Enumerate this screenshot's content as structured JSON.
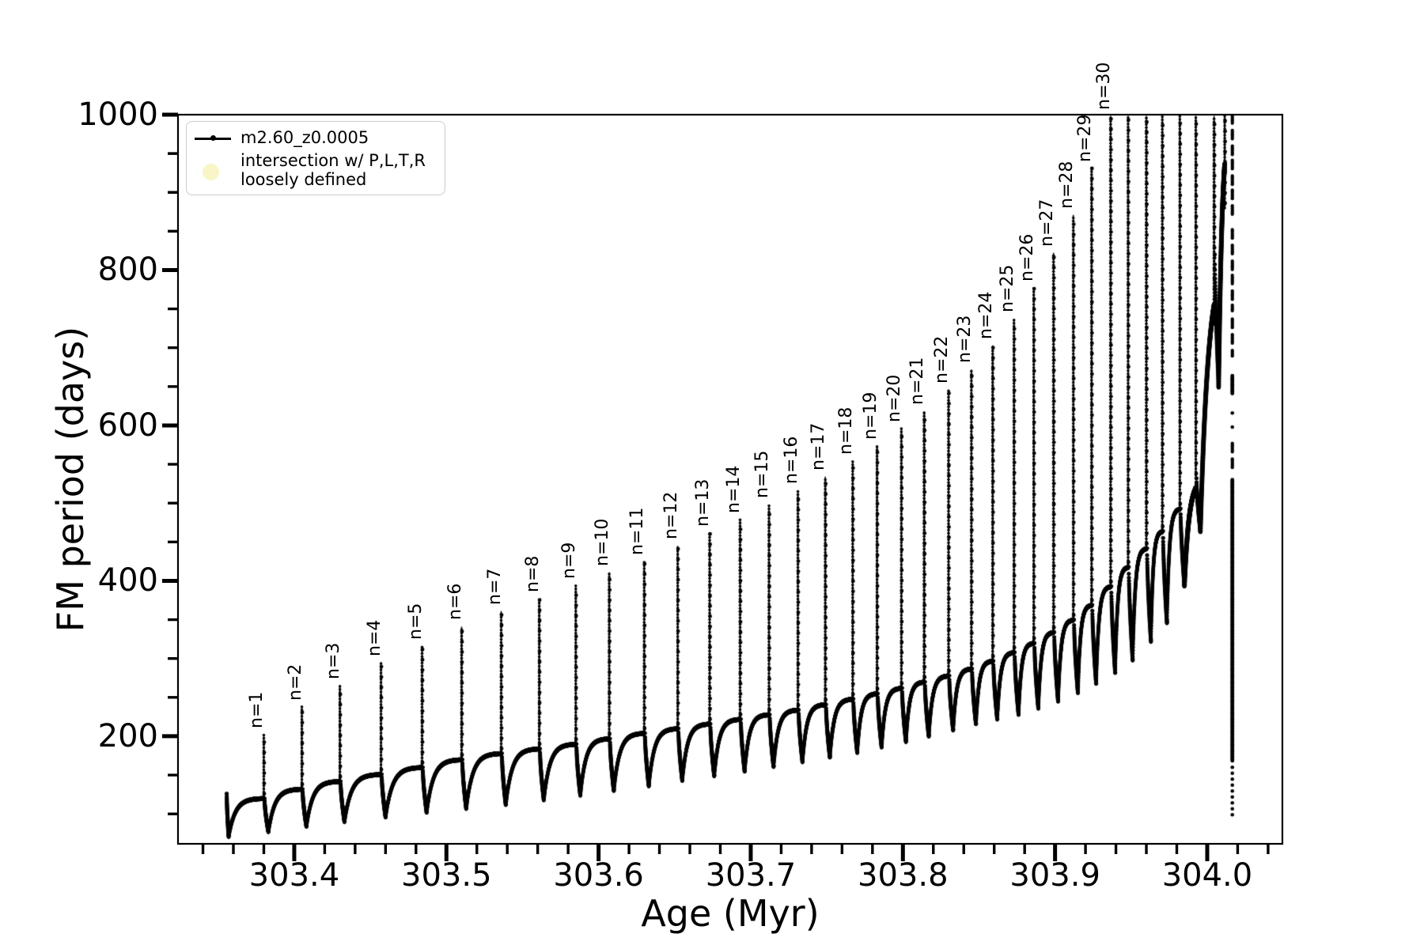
{
  "figure": {
    "xlabel": "Age (Myr)",
    "ylabel": "FM period (days)",
    "axis_color": "#000000",
    "background": "#ffffff"
  },
  "legend": {
    "series_label": "m2.60_z0.0005",
    "intersection_label_line1": "intersection w/ P,L,T,R",
    "intersection_label_line2": "loosely defined",
    "intersection_marker_color": "#f8f5c6",
    "line_marker_color": "#000000"
  },
  "chart_data": {
    "type": "line",
    "title": "",
    "xlabel": "Age (Myr)",
    "ylabel": "FM period (days)",
    "series_name": "m2.60_z0.0005",
    "grid": false,
    "legend_position": "upper left",
    "xlim": [
      303.3236,
      304.0494
    ],
    "ylim": [
      61.5,
      1000
    ],
    "x_major_ticks": [
      303.4,
      303.5,
      303.6,
      303.7,
      303.8,
      303.9,
      304.0
    ],
    "x_major_labels": [
      "303.4",
      "303.5",
      "303.6",
      "303.7",
      "303.8",
      "303.9",
      "304.0"
    ],
    "x_minor_step": 0.02,
    "y_major_ticks": [
      200,
      400,
      600,
      800,
      1000
    ],
    "y_major_labels": [
      "200",
      "400",
      "600",
      "800",
      "1000"
    ],
    "y_minor_step": 50,
    "start_segment": {
      "age": 303.3556,
      "top": 126,
      "bottom": 71
    },
    "spikes": [
      {
        "label": "n=1",
        "age": 303.38,
        "peak": 202,
        "plateau": 120,
        "dip": 77
      },
      {
        "label": "n=2",
        "age": 303.405,
        "peak": 238,
        "plateau": 132,
        "dip": 84
      },
      {
        "label": "n=3",
        "age": 303.43,
        "peak": 265,
        "plateau": 142,
        "dip": 90
      },
      {
        "label": "n=4",
        "age": 303.457,
        "peak": 295,
        "plateau": 151,
        "dip": 96
      },
      {
        "label": "n=5",
        "age": 303.484,
        "peak": 316,
        "plateau": 160,
        "dip": 102
      },
      {
        "label": "n=6",
        "age": 303.51,
        "peak": 341,
        "plateau": 170,
        "dip": 107
      },
      {
        "label": "n=7",
        "age": 303.536,
        "peak": 361,
        "plateau": 178,
        "dip": 112
      },
      {
        "label": "n=8",
        "age": 303.561,
        "peak": 377,
        "plateau": 184,
        "dip": 118
      },
      {
        "label": "n=9",
        "age": 303.585,
        "peak": 394,
        "plateau": 190,
        "dip": 124
      },
      {
        "label": "n=10",
        "age": 303.607,
        "peak": 411,
        "plateau": 197,
        "dip": 130
      },
      {
        "label": "n=11",
        "age": 303.63,
        "peak": 425,
        "plateau": 204,
        "dip": 136
      },
      {
        "label": "n=12",
        "age": 303.652,
        "peak": 445,
        "plateau": 210,
        "dip": 143
      },
      {
        "label": "n=13",
        "age": 303.673,
        "peak": 462,
        "plateau": 216,
        "dip": 149
      },
      {
        "label": "n=14",
        "age": 303.693,
        "peak": 479,
        "plateau": 222,
        "dip": 155
      },
      {
        "label": "n=15",
        "age": 303.712,
        "peak": 498,
        "plateau": 228,
        "dip": 161
      },
      {
        "label": "n=16",
        "age": 303.731,
        "peak": 516,
        "plateau": 234,
        "dip": 167
      },
      {
        "label": "n=17",
        "age": 303.749,
        "peak": 534,
        "plateau": 241,
        "dip": 173
      },
      {
        "label": "n=18",
        "age": 303.767,
        "peak": 554,
        "plateau": 248,
        "dip": 179
      },
      {
        "label": "n=19",
        "age": 303.783,
        "peak": 574,
        "plateau": 255,
        "dip": 186
      },
      {
        "label": "n=20",
        "age": 303.799,
        "peak": 596,
        "plateau": 262,
        "dip": 193
      },
      {
        "label": "n=21",
        "age": 303.814,
        "peak": 618,
        "plateau": 270,
        "dip": 200
      },
      {
        "label": "n=22",
        "age": 303.83,
        "peak": 646,
        "plateau": 278,
        "dip": 208
      },
      {
        "label": "n=23",
        "age": 303.845,
        "peak": 672,
        "plateau": 287,
        "dip": 216
      },
      {
        "label": "n=24",
        "age": 303.859,
        "peak": 703,
        "plateau": 297,
        "dip": 222
      },
      {
        "label": "n=25",
        "age": 303.873,
        "peak": 737,
        "plateau": 308,
        "dip": 228
      },
      {
        "label": "n=26",
        "age": 303.886,
        "peak": 777,
        "plateau": 320,
        "dip": 236
      },
      {
        "label": "n=27",
        "age": 303.899,
        "peak": 822,
        "plateau": 334,
        "dip": 245
      },
      {
        "label": "n=28",
        "age": 303.912,
        "peak": 871,
        "plateau": 350,
        "dip": 256
      },
      {
        "label": "n=29",
        "age": 303.924,
        "peak": 931,
        "plateau": 369,
        "dip": 268
      },
      {
        "label": "n=30",
        "age": 303.9365,
        "peak": 1015,
        "plateau": 393,
        "dip": 282
      },
      {
        "label": null,
        "age": 303.948,
        "peak": 1015,
        "plateau": 418,
        "dip": 298
      },
      {
        "label": null,
        "age": 303.96,
        "peak": 1015,
        "plateau": 442,
        "dip": 322
      },
      {
        "label": null,
        "age": 303.9705,
        "peak": 1015,
        "plateau": 464,
        "dip": 346
      },
      {
        "label": null,
        "age": 303.982,
        "peak": 1015,
        "plateau": 493,
        "dip": 394,
        "k": 2.4
      },
      {
        "label": null,
        "age": 303.9925,
        "peak": 1015,
        "plateau": 532,
        "dip": 464,
        "k": 1.7
      },
      {
        "label": null,
        "age": 304.0045,
        "peak": 1015,
        "plateau": 820,
        "dip": 650,
        "k": 1.7,
        "ext": 90
      },
      {
        "label": null,
        "age": 304.0115,
        "peak": 1015,
        "plateau": 1000,
        "dip": null,
        "ext": 120
      }
    ],
    "final_column": {
      "age": 304.0165,
      "segments": [
        {
          "from": 1000,
          "to": 868,
          "style": "dash"
        },
        {
          "from": 852,
          "to": 746,
          "style": "dash"
        },
        {
          "from": 737,
          "to": 688,
          "style": "dash"
        },
        {
          "from": 664,
          "to": 640,
          "style": "solid"
        },
        {
          "from": 616,
          "to": 612,
          "style": "dots"
        },
        {
          "from": 598,
          "to": 594,
          "style": "dots"
        },
        {
          "from": 577,
          "to": 545,
          "style": "dash"
        },
        {
          "from": 530,
          "to": 168,
          "style": "solid"
        },
        {
          "from": 160,
          "to": 92,
          "style": "dots"
        }
      ]
    }
  }
}
